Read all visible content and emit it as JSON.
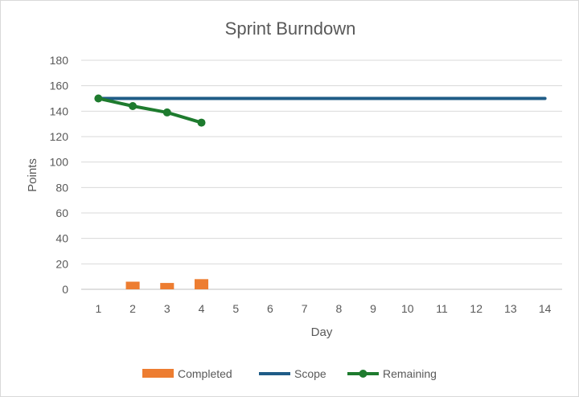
{
  "chart_data": {
    "type": "bar+line",
    "title": "Sprint Burndown",
    "xlabel": "Day",
    "ylabel": "Points",
    "ylim": [
      0,
      180
    ],
    "yticks": [
      0,
      20,
      40,
      60,
      80,
      100,
      120,
      140,
      160,
      180
    ],
    "categories": [
      "1",
      "2",
      "3",
      "4",
      "5",
      "6",
      "7",
      "8",
      "9",
      "10",
      "11",
      "12",
      "13",
      "14"
    ],
    "grid": true,
    "legend_position": "bottom",
    "series": [
      {
        "name": "Completed",
        "kind": "bar",
        "color": "#ED7D31",
        "values": [
          0,
          6,
          5,
          8,
          null,
          null,
          null,
          null,
          null,
          null,
          null,
          null,
          null,
          null
        ]
      },
      {
        "name": "Scope",
        "kind": "line",
        "color": "#1F5C87",
        "values": [
          150,
          150,
          150,
          150,
          150,
          150,
          150,
          150,
          150,
          150,
          150,
          150,
          150,
          150
        ]
      },
      {
        "name": "Remaining",
        "kind": "line-markers",
        "color": "#1E7B2E",
        "values": [
          150,
          144,
          139,
          131,
          null,
          null,
          null,
          null,
          null,
          null,
          null,
          null,
          null,
          null
        ]
      }
    ]
  }
}
